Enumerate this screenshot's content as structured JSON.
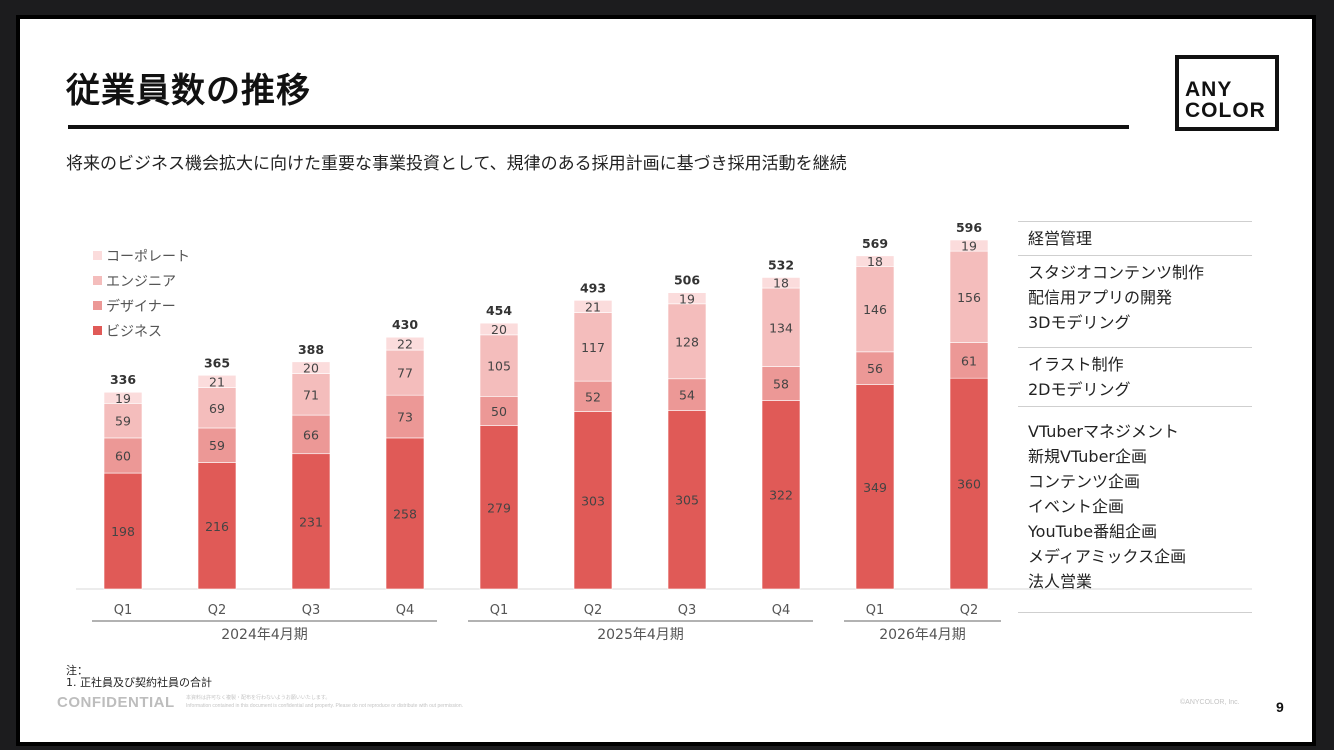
{
  "slide": {
    "title": "従業員数の推移",
    "subtitle": "将来のビジネス機会拡大に向けた重要な事業投資として、規律のある採用計画に基づき採用活動を継続",
    "logo": {
      "line1": "ANY",
      "line2": "COLOR"
    },
    "note": {
      "heading": "注：",
      "item1": "1. 正社員及び契約社員の合計"
    },
    "confidential": "CONFIDENTIAL",
    "disclaimer_jp": "本資料は許可なく複製・配布を行わないようお願いいたします。",
    "disclaimer_en": "Information contained in this document is confidential and property. Please do not reproduce or distribute with out permission.",
    "copyright": "©ANYCOLOR, Inc.",
    "page_number": "9"
  },
  "chart_data": {
    "type": "bar",
    "stacked": true,
    "title": "従業員数の推移",
    "xlabel": "",
    "ylabel": "",
    "ylim": [
      0,
      600
    ],
    "grid": false,
    "legend_position": "top-left",
    "categories": [
      "Q1",
      "Q2",
      "Q3",
      "Q4",
      "Q1",
      "Q2",
      "Q3",
      "Q4",
      "Q1",
      "Q2"
    ],
    "groups": [
      {
        "label": "2024年4月期",
        "count": 4
      },
      {
        "label": "2025年4月期",
        "count": 4
      },
      {
        "label": "2026年4月期",
        "count": 2
      }
    ],
    "series": [
      {
        "name": "ビジネス",
        "color": "#e05a57",
        "values": [
          198,
          216,
          231,
          258,
          279,
          303,
          305,
          322,
          349,
          360
        ]
      },
      {
        "name": "デザイナー",
        "color": "#ec9896",
        "values": [
          60,
          59,
          66,
          73,
          50,
          52,
          54,
          58,
          56,
          61
        ]
      },
      {
        "name": "エンジニア",
        "color": "#f4bdbc",
        "values": [
          59,
          69,
          71,
          77,
          105,
          117,
          128,
          134,
          146,
          156
        ]
      },
      {
        "name": "コーポレート",
        "color": "#fbdcdc",
        "values": [
          19,
          21,
          20,
          22,
          20,
          21,
          19,
          18,
          18,
          19
        ]
      }
    ],
    "totals": [
      336,
      365,
      388,
      430,
      454,
      493,
      506,
      532,
      569,
      596
    ],
    "side_table": [
      {
        "series": "コーポレート",
        "lines": [
          "経営管理"
        ]
      },
      {
        "series": "エンジニア",
        "lines": [
          "スタジオコンテンツ制作",
          "配信用アプリの開発",
          "3Dモデリング"
        ]
      },
      {
        "series": "デザイナー",
        "lines": [
          "イラスト制作",
          "2Dモデリング"
        ]
      },
      {
        "series": "ビジネス",
        "lines": [
          "VTuberマネジメント",
          "新規VTuber企画",
          "コンテンツ企画",
          "イベント企画",
          "YouTube番組企画",
          "メディアミックス企画",
          "法人営業"
        ]
      }
    ]
  }
}
